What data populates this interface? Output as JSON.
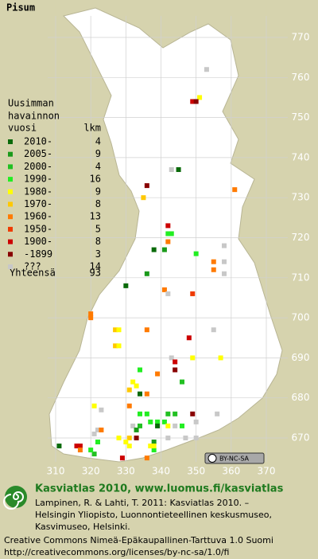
{
  "title": "Pisum",
  "legend": {
    "header": [
      "Uusimman",
      "havainnon",
      "vuosi"
    ],
    "count_header": "lkm",
    "rows": [
      {
        "label": "2010-",
        "count": 4,
        "color": "#0a6a0a"
      },
      {
        "label": "2005-",
        "count": 9,
        "color": "#1a9a1a"
      },
      {
        "label": "2000-",
        "count": 4,
        "color": "#22c022"
      },
      {
        "label": "1990-",
        "count": 16,
        "color": "#22ee22"
      },
      {
        "label": "1980-",
        "count": 9,
        "color": "#ffff00"
      },
      {
        "label": "1970-",
        "count": 8,
        "color": "#ffc800"
      },
      {
        "label": "1960-",
        "count": 13,
        "color": "#ff7a00"
      },
      {
        "label": "1950-",
        "count": 5,
        "color": "#ee3a00"
      },
      {
        "label": "1900-",
        "count": 8,
        "color": "#cc0000"
      },
      {
        "label": "-1899",
        "count": 3,
        "color": "#880000"
      },
      {
        "label": "???",
        "count": 14,
        "color": "#c8c8c8"
      }
    ],
    "total_label": "Yhteensä",
    "total": 93
  },
  "map": {
    "xlim": [
      310,
      370
    ],
    "ylim": [
      670,
      770
    ],
    "xticks": [
      310,
      320,
      330,
      340,
      350,
      360,
      370
    ],
    "yticks": [
      670,
      680,
      690,
      700,
      710,
      720,
      730,
      740,
      750,
      760,
      770
    ],
    "points": [
      {
        "e": 353,
        "n": 762,
        "period": 10
      },
      {
        "e": 349,
        "n": 754,
        "period": 8
      },
      {
        "e": 351,
        "n": 755,
        "period": 4
      },
      {
        "e": 350,
        "n": 754,
        "period": 9
      },
      {
        "e": 343,
        "n": 737,
        "period": 10
      },
      {
        "e": 345,
        "n": 737,
        "period": 0
      },
      {
        "e": 361,
        "n": 732,
        "period": 6
      },
      {
        "e": 336,
        "n": 733,
        "period": 9
      },
      {
        "e": 335,
        "n": 730,
        "period": 5
      },
      {
        "e": 342,
        "n": 723,
        "period": 8
      },
      {
        "e": 342,
        "n": 721,
        "period": 3
      },
      {
        "e": 343,
        "n": 721,
        "period": 3
      },
      {
        "e": 342,
        "n": 719,
        "period": 6
      },
      {
        "e": 358,
        "n": 718,
        "period": 10
      },
      {
        "e": 338,
        "n": 717,
        "period": 0
      },
      {
        "e": 341,
        "n": 717,
        "period": 1
      },
      {
        "e": 350,
        "n": 716,
        "period": 3
      },
      {
        "e": 355,
        "n": 714,
        "period": 6
      },
      {
        "e": 355,
        "n": 712,
        "period": 6
      },
      {
        "e": 358,
        "n": 714,
        "period": 10
      },
      {
        "e": 336,
        "n": 711,
        "period": 1
      },
      {
        "e": 330,
        "n": 708,
        "period": 0
      },
      {
        "e": 341,
        "n": 707,
        "period": 6
      },
      {
        "e": 358,
        "n": 711,
        "period": 10
      },
      {
        "e": 349,
        "n": 706,
        "period": 7
      },
      {
        "e": 342,
        "n": 706,
        "period": 10
      },
      {
        "e": 320,
        "n": 701,
        "period": 6
      },
      {
        "e": 320,
        "n": 700,
        "period": 6
      },
      {
        "e": 327,
        "n": 697,
        "period": 5
      },
      {
        "e": 328,
        "n": 697,
        "period": 4
      },
      {
        "e": 336,
        "n": 697,
        "period": 6
      },
      {
        "e": 348,
        "n": 695,
        "period": 8
      },
      {
        "e": 355,
        "n": 697,
        "period": 10
      },
      {
        "e": 327,
        "n": 693,
        "period": 5
      },
      {
        "e": 328,
        "n": 693,
        "period": 4
      },
      {
        "e": 343,
        "n": 690,
        "period": 10
      },
      {
        "e": 349,
        "n": 690,
        "period": 4
      },
      {
        "e": 357,
        "n": 690,
        "period": 4
      },
      {
        "e": 344,
        "n": 689,
        "period": 8
      },
      {
        "e": 344,
        "n": 687,
        "period": 9
      },
      {
        "e": 334,
        "n": 687,
        "period": 3
      },
      {
        "e": 339,
        "n": 686,
        "period": 6
      },
      {
        "e": 346,
        "n": 684,
        "period": 2
      },
      {
        "e": 332,
        "n": 684,
        "period": 4
      },
      {
        "e": 331,
        "n": 682,
        "period": 5
      },
      {
        "e": 333,
        "n": 683,
        "period": 4
      },
      {
        "e": 334,
        "n": 681,
        "period": 0
      },
      {
        "e": 336,
        "n": 681,
        "period": 6
      },
      {
        "e": 331,
        "n": 678,
        "period": 6
      },
      {
        "e": 321,
        "n": 678,
        "period": 4
      },
      {
        "e": 323,
        "n": 677,
        "period": 10
      },
      {
        "e": 334,
        "n": 676,
        "period": 3
      },
      {
        "e": 336,
        "n": 676,
        "period": 3
      },
      {
        "e": 342,
        "n": 676,
        "period": 2
      },
      {
        "e": 344,
        "n": 676,
        "period": 2
      },
      {
        "e": 349,
        "n": 676,
        "period": 9
      },
      {
        "e": 356,
        "n": 676,
        "period": 10
      },
      {
        "e": 339,
        "n": 674,
        "period": 3
      },
      {
        "e": 341,
        "n": 674,
        "period": 3
      },
      {
        "e": 332,
        "n": 673,
        "period": 10
      },
      {
        "e": 334,
        "n": 673,
        "period": 2
      },
      {
        "e": 337,
        "n": 674,
        "period": 3
      },
      {
        "e": 339,
        "n": 673,
        "period": 0
      },
      {
        "e": 342,
        "n": 673,
        "period": 4
      },
      {
        "e": 344,
        "n": 673,
        "period": 10
      },
      {
        "e": 346,
        "n": 673,
        "period": 3
      },
      {
        "e": 350,
        "n": 674,
        "period": 10
      },
      {
        "e": 322,
        "n": 672,
        "period": 10
      },
      {
        "e": 321,
        "n": 671,
        "period": 10
      },
      {
        "e": 323,
        "n": 672,
        "period": 6
      },
      {
        "e": 333,
        "n": 672,
        "period": 1
      },
      {
        "e": 328,
        "n": 670,
        "period": 4
      },
      {
        "e": 331,
        "n": 670,
        "period": 5
      },
      {
        "e": 333,
        "n": 670,
        "period": 9
      },
      {
        "e": 338,
        "n": 669,
        "period": 1
      },
      {
        "e": 338,
        "n": 667,
        "period": 3
      },
      {
        "e": 330,
        "n": 669,
        "period": 4
      },
      {
        "e": 331,
        "n": 668,
        "period": 4
      },
      {
        "e": 342,
        "n": 670,
        "period": 10
      },
      {
        "e": 347,
        "n": 670,
        "period": 10
      },
      {
        "e": 350,
        "n": 670,
        "period": 10
      },
      {
        "e": 311,
        "n": 668,
        "period": 0
      },
      {
        "e": 316,
        "n": 668,
        "period": 8
      },
      {
        "e": 317,
        "n": 668,
        "period": 8
      },
      {
        "e": 317,
        "n": 667,
        "period": 6
      },
      {
        "e": 322,
        "n": 669,
        "period": 3
      },
      {
        "e": 337,
        "n": 668,
        "period": 4
      },
      {
        "e": 338,
        "n": 668,
        "period": 4
      },
      {
        "e": 321,
        "n": 666,
        "period": 2
      },
      {
        "e": 329,
        "n": 665,
        "period": 8
      },
      {
        "e": 336,
        "n": 665,
        "period": 6
      },
      {
        "e": 320,
        "n": 667,
        "period": 3
      }
    ]
  },
  "license_badge": "BY-NC-SA",
  "credits": {
    "heading": "Kasviatlas 2010, www.luomus.fi/kasviatlas",
    "citation": [
      "Lampinen, R. & Lahti, T. 2011: Kasviatlas 2010. –",
      "Helsingin Yliopisto, Luonnontieteellinen keskusmuseo,",
      "Kasvimuseo, Helsinki."
    ],
    "license": [
      "Creative Commons Nimeä-Epäkaupallinen-Tarttuva 1.0 Suomi",
      "http://creativecommons.org/licenses/by-nc-sa/1.0/fi"
    ]
  }
}
